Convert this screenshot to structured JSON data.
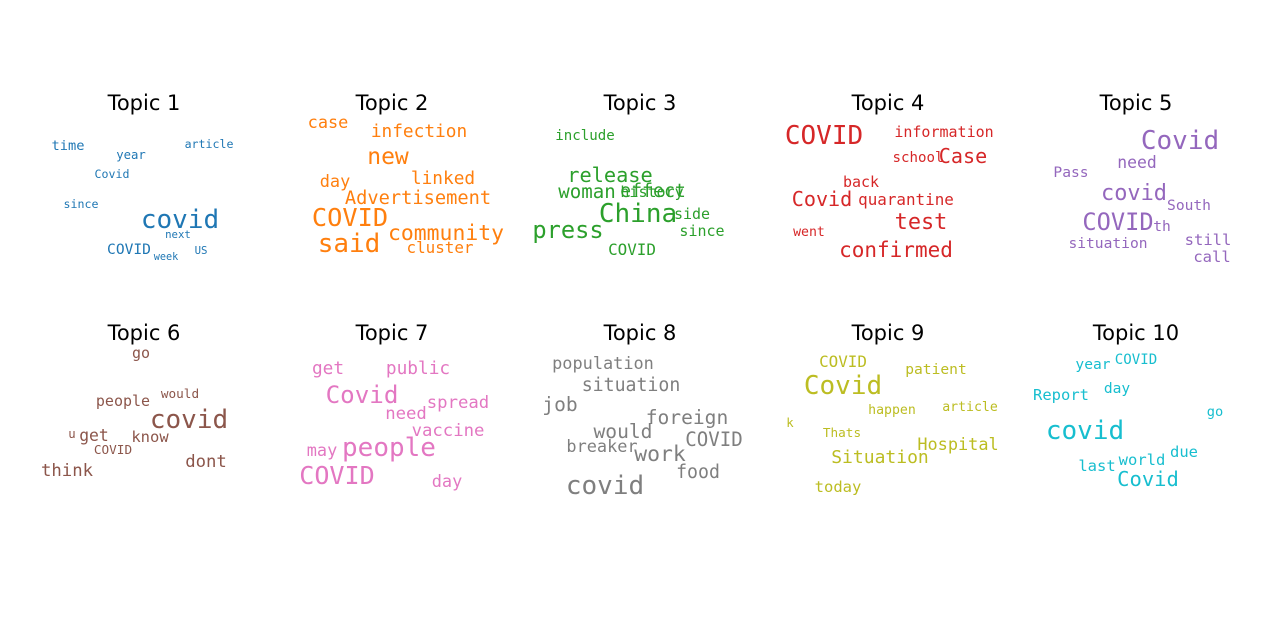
{
  "chart_data": [
    {
      "type": "wordcloud",
      "title": "Topic 1",
      "color": "#1f77b4",
      "words": [
        {
          "text": "covid",
          "weight": 1.0
        },
        {
          "text": "COVID",
          "weight": 0.5
        },
        {
          "text": "time",
          "weight": 0.46
        },
        {
          "text": "year",
          "weight": 0.4
        },
        {
          "text": "article",
          "weight": 0.37
        },
        {
          "text": "Covid",
          "weight": 0.37
        },
        {
          "text": "since",
          "weight": 0.37
        },
        {
          "text": "next",
          "weight": 0.33
        },
        {
          "text": "US",
          "weight": 0.33
        },
        {
          "text": "week",
          "weight": 0.31
        }
      ]
    },
    {
      "type": "wordcloud",
      "title": "Topic 2",
      "color": "#ff7f0e",
      "words": [
        {
          "text": "said",
          "weight": 1.0
        },
        {
          "text": "COVID",
          "weight": 0.97
        },
        {
          "text": "new",
          "weight": 0.87
        },
        {
          "text": "community",
          "weight": 0.8
        },
        {
          "text": "Advertisement",
          "weight": 0.68
        },
        {
          "text": "infection",
          "weight": 0.64
        },
        {
          "text": "linked",
          "weight": 0.64
        },
        {
          "text": "case",
          "weight": 0.6
        },
        {
          "text": "day",
          "weight": 0.6
        },
        {
          "text": "cluster",
          "weight": 0.56
        }
      ]
    },
    {
      "type": "wordcloud",
      "title": "Topic 3",
      "color": "#2ca02c",
      "words": [
        {
          "text": "China",
          "weight": 1.0
        },
        {
          "text": "press",
          "weight": 0.9
        },
        {
          "text": "release",
          "weight": 0.75
        },
        {
          "text": "woman",
          "weight": 0.7
        },
        {
          "text": "effect",
          "weight": 0.66
        },
        {
          "text": "COVID",
          "weight": 0.56
        },
        {
          "text": "history",
          "weight": 0.52
        },
        {
          "text": "since",
          "weight": 0.52
        },
        {
          "text": "side",
          "weight": 0.52
        },
        {
          "text": "include",
          "weight": 0.48
        }
      ]
    },
    {
      "type": "wordcloud",
      "title": "Topic 4",
      "color": "#d62728",
      "words": [
        {
          "text": "COVID",
          "weight": 1.0
        },
        {
          "text": "test",
          "weight": 0.82
        },
        {
          "text": "confirmed",
          "weight": 0.78
        },
        {
          "text": "Case",
          "weight": 0.74
        },
        {
          "text": "Covid",
          "weight": 0.74
        },
        {
          "text": "quarantine",
          "weight": 0.56
        },
        {
          "text": "information",
          "weight": 0.52
        },
        {
          "text": "back",
          "weight": 0.52
        },
        {
          "text": "school",
          "weight": 0.48
        },
        {
          "text": "went",
          "weight": 0.44
        }
      ]
    },
    {
      "type": "wordcloud",
      "title": "Topic 5",
      "color": "#9467bd",
      "words": [
        {
          "text": "Covid",
          "weight": 1.0
        },
        {
          "text": "COVID",
          "weight": 0.9
        },
        {
          "text": "covid",
          "weight": 0.82
        },
        {
          "text": "need",
          "weight": 0.58
        },
        {
          "text": "still",
          "weight": 0.54
        },
        {
          "text": "call",
          "weight": 0.54
        },
        {
          "text": "Pass",
          "weight": 0.5
        },
        {
          "text": "situation",
          "weight": 0.5
        },
        {
          "text": "South",
          "weight": 0.5
        },
        {
          "text": "th",
          "weight": 0.5
        }
      ]
    },
    {
      "type": "wordcloud",
      "title": "Topic 6",
      "color": "#8c564b",
      "words": [
        {
          "text": "covid",
          "weight": 1.0
        },
        {
          "text": "think",
          "weight": 0.62
        },
        {
          "text": "dont",
          "weight": 0.62
        },
        {
          "text": "get",
          "weight": 0.58
        },
        {
          "text": "know",
          "weight": 0.54
        },
        {
          "text": "people",
          "weight": 0.52
        },
        {
          "text": "go",
          "weight": 0.52
        },
        {
          "text": "would",
          "weight": 0.42
        },
        {
          "text": "COVID",
          "weight": 0.42
        },
        {
          "text": "u",
          "weight": 0.4
        }
      ]
    },
    {
      "type": "wordcloud",
      "title": "Topic 7",
      "color": "#e377c2",
      "words": [
        {
          "text": "people",
          "weight": 1.0
        },
        {
          "text": "COVID",
          "weight": 0.96
        },
        {
          "text": "Covid",
          "weight": 0.92
        },
        {
          "text": "public",
          "weight": 0.64
        },
        {
          "text": "get",
          "weight": 0.64
        },
        {
          "text": "spread",
          "weight": 0.62
        },
        {
          "text": "vaccine",
          "weight": 0.62
        },
        {
          "text": "need",
          "weight": 0.62
        },
        {
          "text": "may",
          "weight": 0.6
        },
        {
          "text": "day",
          "weight": 0.6
        }
      ]
    },
    {
      "type": "wordcloud",
      "title": "Topic 8",
      "color": "#7f7f7f",
      "words": [
        {
          "text": "covid",
          "weight": 1.0
        },
        {
          "text": "work",
          "weight": 0.8
        },
        {
          "text": "job",
          "weight": 0.72
        },
        {
          "text": "would",
          "weight": 0.72
        },
        {
          "text": "foreign",
          "weight": 0.72
        },
        {
          "text": "COVID",
          "weight": 0.7
        },
        {
          "text": "situation",
          "weight": 0.66
        },
        {
          "text": "food",
          "weight": 0.66
        },
        {
          "text": "population",
          "weight": 0.6
        },
        {
          "text": "breaker",
          "weight": 0.6
        }
      ]
    },
    {
      "type": "wordcloud",
      "title": "Topic 9",
      "color": "#bcbd22",
      "words": [
        {
          "text": "Covid",
          "weight": 1.0
        },
        {
          "text": "Situation",
          "weight": 0.65
        },
        {
          "text": "Hospital",
          "weight": 0.6
        },
        {
          "text": "COVID",
          "weight": 0.56
        },
        {
          "text": "today",
          "weight": 0.54
        },
        {
          "text": "patient",
          "weight": 0.5
        },
        {
          "text": "happen",
          "weight": 0.44
        },
        {
          "text": "article",
          "weight": 0.44
        },
        {
          "text": "Thats",
          "weight": 0.42
        },
        {
          "text": "k",
          "weight": 0.4
        }
      ]
    },
    {
      "type": "wordcloud",
      "title": "Topic 10",
      "color": "#17becf",
      "words": [
        {
          "text": "covid",
          "weight": 1.0
        },
        {
          "text": "Covid",
          "weight": 0.76
        },
        {
          "text": "Report",
          "weight": 0.54
        },
        {
          "text": "due",
          "weight": 0.54
        },
        {
          "text": "world",
          "weight": 0.54
        },
        {
          "text": "last",
          "weight": 0.54
        },
        {
          "text": "year",
          "weight": 0.5
        },
        {
          "text": "day",
          "weight": 0.5
        },
        {
          "text": "COVID",
          "weight": 0.48
        },
        {
          "text": "go",
          "weight": 0.46
        }
      ]
    }
  ]
}
